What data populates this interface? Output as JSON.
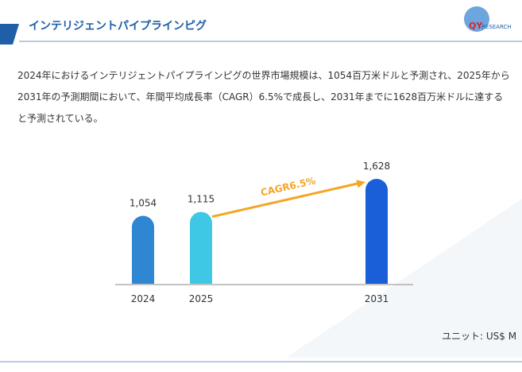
{
  "logo": {
    "brand": "QY",
    "sub": "RESEARCH"
  },
  "chart_data": {
    "type": "bar",
    "title": "インテリジェントパイプラインピグ",
    "description": "2024年におけるインテリジェントパイプラインピグの世界市場規模は、1054百万米ドルと予測され、2025年から2031年の予測期間において、年間平均成長率（CAGR）6.5%で成長し、2031年までに1628百万米ドルに達すると予測されている。",
    "categories": [
      "2024",
      "2025",
      "2031"
    ],
    "values": [
      1054,
      1115,
      1628
    ],
    "value_labels": [
      "1,054",
      "1,115",
      "1,628"
    ],
    "colors": [
      "#2f86d3",
      "#3fc7e6",
      "#1b5fd8"
    ],
    "annotation": "CAGR6.5%",
    "annotation_color": "#f5a524",
    "unit": "ユニット: US$ M"
  }
}
